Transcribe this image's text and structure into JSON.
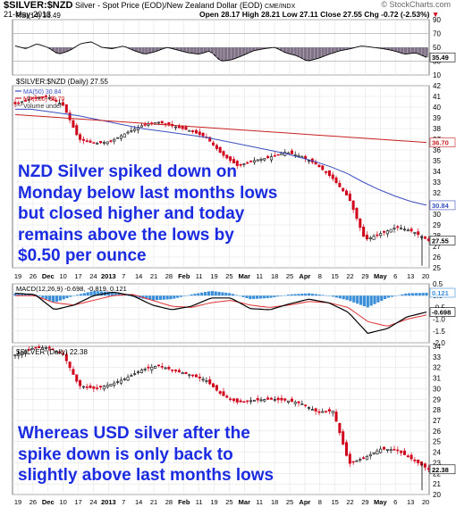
{
  "header": {
    "symbol": "$SILVER:$NZD",
    "description": "Silver - Spot Price (EOD)/New Zealand Dollar (EOD)",
    "exchange": "CME/INDX",
    "brand": "© StockCharts.com",
    "date": "21-May-2013",
    "ohlc": "Open 28.17  High 28.21  Low 27.11  Close 27.55  Chg -0.72 (-2.53%)",
    "chg_arrow": "▼"
  },
  "rsi_panel": {
    "label": "RSI(14) 35.49",
    "ticks": [
      "90",
      "70",
      "50",
      "30",
      "10"
    ],
    "last_value": "35.49"
  },
  "nzd_panel": {
    "label": "$SILVER:$NZD (Daily) 27.55",
    "legend": [
      "MA(50) 30.84",
      "MA(200) 36.70",
      "Volume undef"
    ],
    "ticks": [
      "42",
      "41",
      "40",
      "39",
      "38",
      "37",
      "36",
      "35",
      "34",
      "33",
      "32",
      "31",
      "30",
      "29",
      "28",
      "27",
      "26",
      "25"
    ],
    "tags": [
      "36.70",
      "30.84",
      "27.55"
    ],
    "annotation": [
      "NZD Silver spiked down on",
      "Monday below last months lows",
      "but closed higher and today",
      "remains above the lows by",
      "$0.50 per ounce"
    ]
  },
  "macd_panel": {
    "label": "MACD(12,26,9) -0.698, -0.819, 0.121",
    "ticks": [
      "0.5",
      "0.0",
      "-0.5",
      "-1.0",
      "-1.5",
      "-2.0"
    ],
    "tags": [
      "0.121",
      "-0.698"
    ]
  },
  "usd_panel": {
    "label": "$SILVER (Daily) 22.38",
    "ticks": [
      "34",
      "33",
      "32",
      "31",
      "30",
      "29",
      "28",
      "27",
      "26",
      "25",
      "24",
      "23",
      "22",
      "21",
      "20"
    ],
    "tag": "22.38",
    "annotation": [
      "Whereas USD silver after the",
      "spike down is only back to",
      "slightly above last months lows"
    ]
  },
  "x_axis_labels": [
    "19",
    "26",
    "Dec",
    "10",
    "17",
    "24",
    "2013",
    "7",
    "14",
    "21",
    "28",
    "Feb",
    "11",
    "19",
    "25",
    "Mar",
    "11",
    "18",
    "25",
    "Apr",
    "8",
    "15",
    "22",
    "29",
    "May",
    "6",
    "13",
    "20"
  ],
  "colors": {
    "annotation": "#1a2be0",
    "up_candle": "#000000",
    "down_candle": "#d0021b",
    "ma50": "#3a4fc0",
    "ma200": "#c82020",
    "macd_hist": "#3b8fd9",
    "rsi_fill": "#6b5a72"
  },
  "chart_data": [
    {
      "type": "line",
      "title": "RSI(14) 35.49",
      "ylim": [
        10,
        90
      ],
      "series": [
        {
          "name": "RSI(14)",
          "values": [
            52,
            48,
            55,
            50,
            40,
            45,
            55,
            58,
            50,
            48,
            52,
            45,
            40,
            44,
            50,
            46,
            42,
            40,
            45,
            30,
            32,
            38,
            45,
            48,
            50,
            42,
            38,
            30,
            34,
            40,
            45,
            48,
            52,
            50,
            48,
            45,
            40,
            42,
            35.49
          ]
        }
      ]
    },
    {
      "type": "line",
      "title": "$SILVER:$NZD (Daily) 27.55",
      "x": [
        "Nov 19",
        "Nov 26",
        "Dec 3",
        "Dec 10",
        "Dec 17",
        "Dec 24",
        "Dec 31",
        "Jan 7",
        "Jan 14",
        "Jan 21",
        "Jan 28",
        "Feb 4",
        "Feb 11",
        "Feb 19",
        "Feb 25",
        "Mar 4",
        "Mar 11",
        "Mar 18",
        "Mar 25",
        "Apr 1",
        "Apr 8",
        "Apr 15",
        "Apr 22",
        "Apr 29",
        "May 6",
        "May 13",
        "May 21"
      ],
      "ylim": [
        25,
        42
      ],
      "series": [
        {
          "name": "$SILVER:$NZD",
          "values": [
            40.3,
            40.8,
            41.0,
            40.2,
            37.0,
            36.6,
            36.8,
            37.6,
            38.3,
            38.6,
            38.2,
            37.8,
            37.2,
            35.6,
            34.5,
            35.0,
            35.3,
            35.8,
            35.4,
            34.6,
            33.3,
            31.5,
            27.6,
            28.2,
            28.8,
            28.4,
            27.55
          ]
        },
        {
          "name": "MA(50)",
          "values": [
            39.8,
            39.8,
            39.6,
            39.4,
            39.2,
            38.9,
            38.6,
            38.3,
            38.0,
            37.8,
            37.6,
            37.4,
            37.2,
            36.9,
            36.6,
            36.3,
            36.0,
            35.7,
            35.3,
            34.9,
            34.4,
            33.8,
            33.0,
            32.3,
            31.7,
            31.2,
            30.84
          ]
        },
        {
          "name": "MA(200)",
          "values": [
            39.3,
            39.2,
            39.1,
            39.0,
            38.9,
            38.8,
            38.7,
            38.6,
            38.5,
            38.4,
            38.3,
            38.2,
            38.1,
            38.0,
            37.9,
            37.8,
            37.7,
            37.6,
            37.5,
            37.4,
            37.3,
            37.2,
            37.1,
            37.0,
            36.9,
            36.8,
            36.7
          ]
        }
      ]
    },
    {
      "type": "line",
      "title": "MACD(12,26,9) -0.698, -0.819, 0.121",
      "ylim": [
        -2.0,
        0.5
      ],
      "series": [
        {
          "name": "MACD",
          "values": [
            0.1,
            0.05,
            -0.6,
            -0.4,
            0.0,
            0.15,
            0.0,
            -0.4,
            -0.6,
            -0.45,
            -0.1,
            -0.1,
            -0.55,
            -0.6,
            -0.35,
            -0.15,
            -0.3,
            -0.7,
            -1.6,
            -1.4,
            -0.9,
            -0.698
          ]
        },
        {
          "name": "Signal",
          "values": [
            0.0,
            0.0,
            -0.3,
            -0.4,
            -0.2,
            0.0,
            0.05,
            -0.2,
            -0.45,
            -0.5,
            -0.3,
            -0.2,
            -0.4,
            -0.5,
            -0.4,
            -0.25,
            -0.3,
            -0.5,
            -1.1,
            -1.3,
            -1.0,
            -0.819
          ]
        },
        {
          "name": "Histogram",
          "values": [
            0.1,
            0.05,
            -0.3,
            0.0,
            0.2,
            0.15,
            -0.05,
            -0.2,
            -0.15,
            0.05,
            0.2,
            0.1,
            -0.15,
            -0.1,
            0.05,
            0.1,
            0.0,
            -0.2,
            -0.5,
            -0.1,
            0.1,
            0.121
          ]
        }
      ]
    },
    {
      "type": "line",
      "title": "$SILVER (Daily) 22.38",
      "x": [
        "Nov 19",
        "Nov 26",
        "Dec 3",
        "Dec 10",
        "Dec 17",
        "Dec 24",
        "Dec 31",
        "Jan 7",
        "Jan 14",
        "Jan 21",
        "Jan 28",
        "Feb 4",
        "Feb 11",
        "Feb 19",
        "Feb 25",
        "Mar 4",
        "Mar 11",
        "Mar 18",
        "Mar 25",
        "Apr 1",
        "Apr 8",
        "Apr 15",
        "Apr 22",
        "Apr 29",
        "May 6",
        "May 13",
        "May 21"
      ],
      "ylim": [
        20,
        34
      ],
      "series": [
        {
          "name": "$SILVER",
          "values": [
            33.2,
            33.8,
            33.9,
            33.3,
            30.3,
            30.0,
            30.4,
            31.0,
            31.8,
            32.2,
            31.7,
            31.3,
            30.8,
            29.4,
            28.7,
            28.9,
            29.0,
            28.9,
            28.6,
            27.8,
            27.9,
            22.9,
            23.5,
            24.3,
            24.2,
            23.3,
            22.38
          ]
        }
      ]
    }
  ]
}
